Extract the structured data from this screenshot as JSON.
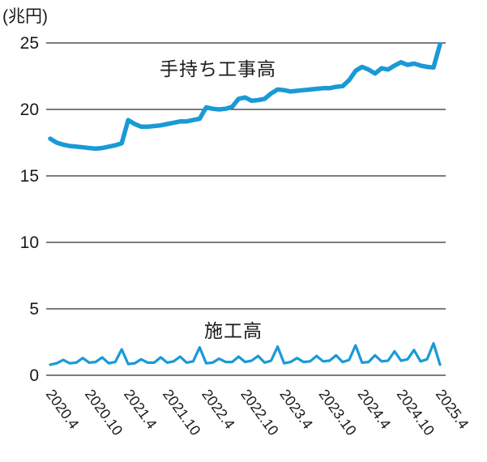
{
  "chart_data": {
    "type": "line",
    "unit_label": "(兆円)",
    "x_start": "2020.4",
    "x_end": "2025.4",
    "x_interval": "monthly",
    "x_tick_labels": [
      "2020.4",
      "2020.10",
      "2021.4",
      "2021.10",
      "2022.4",
      "2022.10",
      "2023.4",
      "2023.10",
      "2024.4",
      "2024.10",
      "2025.4"
    ],
    "x_tick_month_step": 6,
    "yticks": [
      0,
      5,
      10,
      15,
      20,
      25
    ],
    "ylim": [
      0,
      25
    ],
    "grid": "horizontal-only",
    "legend_position": "inline-text-labels",
    "series": [
      {
        "name": "手持ち工事高",
        "color": "#199ad6",
        "line_width": 5.5,
        "values": [
          17.8,
          17.5,
          17.35,
          17.25,
          17.2,
          17.15,
          17.1,
          17.05,
          17.1,
          17.2,
          17.3,
          17.45,
          19.2,
          18.9,
          18.7,
          18.7,
          18.75,
          18.8,
          18.9,
          19.0,
          19.1,
          19.1,
          19.2,
          19.3,
          20.15,
          20.05,
          20.0,
          20.05,
          20.2,
          20.8,
          20.9,
          20.65,
          20.7,
          20.8,
          21.2,
          21.5,
          21.45,
          21.35,
          21.4,
          21.45,
          21.5,
          21.55,
          21.6,
          21.6,
          21.7,
          21.75,
          22.2,
          22.9,
          23.2,
          23.0,
          22.7,
          23.1,
          23.0,
          23.3,
          23.55,
          23.35,
          23.45,
          23.3,
          23.2,
          23.15,
          24.9
        ]
      },
      {
        "name": "施工高",
        "color": "#199ad6",
        "line_width": 3.2,
        "values": [
          0.8,
          0.9,
          1.15,
          0.9,
          0.95,
          1.3,
          0.95,
          1.0,
          1.35,
          0.9,
          1.0,
          1.95,
          0.85,
          0.9,
          1.2,
          0.95,
          0.95,
          1.35,
          0.95,
          1.05,
          1.4,
          0.95,
          1.05,
          2.1,
          0.9,
          0.95,
          1.25,
          1.0,
          1.0,
          1.4,
          1.0,
          1.1,
          1.45,
          0.95,
          1.1,
          2.15,
          0.9,
          1.0,
          1.3,
          1.0,
          1.05,
          1.45,
          1.05,
          1.1,
          1.5,
          1.0,
          1.15,
          2.25,
          0.95,
          1.0,
          1.5,
          1.05,
          1.1,
          1.8,
          1.1,
          1.2,
          1.9,
          1.05,
          1.2,
          2.4,
          0.8
        ]
      }
    ],
    "colors": {
      "line": "#199ad6",
      "gridline": "#2e2e2e",
      "text": "#1a1a1a",
      "background": "#ffffff"
    }
  }
}
